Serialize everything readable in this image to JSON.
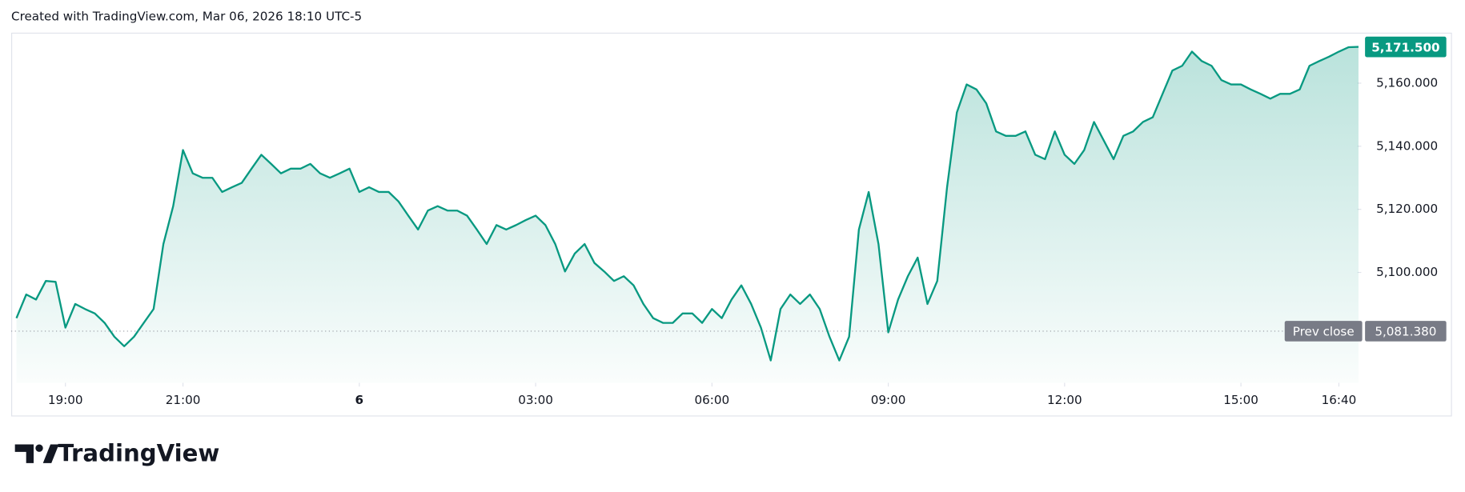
{
  "header": {
    "text": "Created with TradingView.com, Mar 06, 2026 18:10 UTC-5"
  },
  "brand": "TradingView",
  "chart_data": {
    "type": "area",
    "color": "#089981",
    "x": [
      "18:10",
      "18:20",
      "18:30",
      "18:40",
      "18:50",
      "19:00",
      "19:10",
      "19:20",
      "19:30",
      "19:40",
      "19:50",
      "20:00",
      "20:10",
      "20:20",
      "20:30",
      "20:40",
      "20:50",
      "21:00",
      "21:10",
      "21:20",
      "21:30",
      "21:40",
      "21:50",
      "22:00",
      "22:10",
      "22:20",
      "22:30",
      "22:40",
      "22:50",
      "23:00",
      "23:10",
      "23:20",
      "23:30",
      "23:40",
      "23:50",
      "00:00",
      "00:10",
      "00:20",
      "00:30",
      "00:40",
      "00:50",
      "01:00",
      "01:10",
      "01:20",
      "01:30",
      "01:40",
      "01:50",
      "02:00",
      "02:10",
      "02:20",
      "02:30",
      "02:40",
      "02:50",
      "03:00",
      "03:10",
      "03:20",
      "03:30",
      "03:40",
      "03:50",
      "04:00",
      "04:10",
      "04:20",
      "04:30",
      "04:40",
      "04:50",
      "05:00",
      "05:10",
      "05:20",
      "05:30",
      "05:40",
      "05:50",
      "06:00",
      "06:10",
      "06:20",
      "06:30",
      "06:40",
      "06:50",
      "07:00",
      "07:10",
      "07:20",
      "07:30",
      "07:40",
      "07:50",
      "08:00",
      "08:10",
      "08:20",
      "08:30",
      "08:40",
      "08:50",
      "09:00",
      "09:10",
      "09:20",
      "09:30",
      "09:40",
      "09:50",
      "10:00",
      "10:10",
      "10:20",
      "10:30",
      "10:40",
      "10:50",
      "11:00",
      "11:10",
      "11:20",
      "11:30",
      "11:40",
      "11:50",
      "12:00",
      "12:10",
      "12:20",
      "12:30",
      "12:40",
      "12:50",
      "13:00",
      "13:10",
      "13:20",
      "13:30",
      "13:40",
      "13:50",
      "14:00",
      "14:10",
      "14:20",
      "14:30",
      "14:40",
      "14:50",
      "15:00",
      "15:10",
      "15:20",
      "15:30",
      "15:40",
      "15:50",
      "16:00",
      "16:10",
      "16:20",
      "16:30",
      "16:40",
      "16:50",
      "17:00"
    ],
    "values": [
      5085.5,
      5093,
      5091.4,
      5097.3,
      5097,
      5082.5,
      5090,
      5088.4,
      5087,
      5084,
      5079.6,
      5076.6,
      5079.6,
      5084,
      5088.4,
      5109,
      5121,
      5138.8,
      5131.4,
      5130,
      5130,
      5125.5,
      5127,
      5128.4,
      5132.9,
      5137.3,
      5134.4,
      5131.4,
      5132.9,
      5132.9,
      5134.4,
      5131.4,
      5130,
      5131.4,
      5132.9,
      5125.5,
      5127,
      5125.5,
      5125.5,
      5122.5,
      5118,
      5113.6,
      5119.6,
      5121,
      5119.6,
      5119.6,
      5118,
      5113.6,
      5109,
      5115,
      5113.6,
      5115,
      5116.6,
      5118,
      5115,
      5109,
      5100.3,
      5106,
      5109,
      5103,
      5100.3,
      5097.3,
      5098.8,
      5095.9,
      5090,
      5085.5,
      5084,
      5084,
      5087,
      5087,
      5084,
      5088.4,
      5085.5,
      5091.4,
      5095.9,
      5090,
      5082.5,
      5072.1,
      5088.4,
      5093,
      5090,
      5093,
      5088.4,
      5079.6,
      5072.1,
      5079.6,
      5113.6,
      5125.5,
      5109,
      5081,
      5091.4,
      5098.8,
      5104.7,
      5090,
      5097.3,
      5127,
      5150.7,
      5159.6,
      5158,
      5153.6,
      5144.7,
      5143.3,
      5143.3,
      5144.7,
      5137.3,
      5135.9,
      5144.7,
      5137.3,
      5134.4,
      5138.8,
      5147.7,
      5141.8,
      5135.9,
      5143.3,
      5144.7,
      5147.7,
      5149.2,
      5156.6,
      5164,
      5165.5,
      5170,
      5167,
      5165.5,
      5161,
      5159.6,
      5159.6,
      5158,
      5156.6,
      5155.1,
      5156.6,
      5156.6,
      5158,
      5165.5,
      5167,
      5168.4,
      5170,
      5171.4,
      5171.5
    ],
    "ylim": [
      5065,
      5176
    ],
    "yticks": [
      {
        "value": 5100,
        "label": "5,100.000"
      },
      {
        "value": 5120,
        "label": "5,120.000"
      },
      {
        "value": 5140,
        "label": "5,140.000"
      },
      {
        "value": 5160,
        "label": "5,160.000"
      }
    ],
    "xticks": [
      "19:00",
      "21:00",
      {
        "value": "00:00",
        "label": "6"
      },
      "03:00",
      "06:00",
      "09:00",
      "12:00",
      "15:00",
      "16:40"
    ],
    "last_price": {
      "value": 5171.5,
      "label": "5,171.500"
    },
    "prev_close": {
      "label": "Prev close",
      "value": 5081.38,
      "value_label": "5,081.380"
    }
  }
}
